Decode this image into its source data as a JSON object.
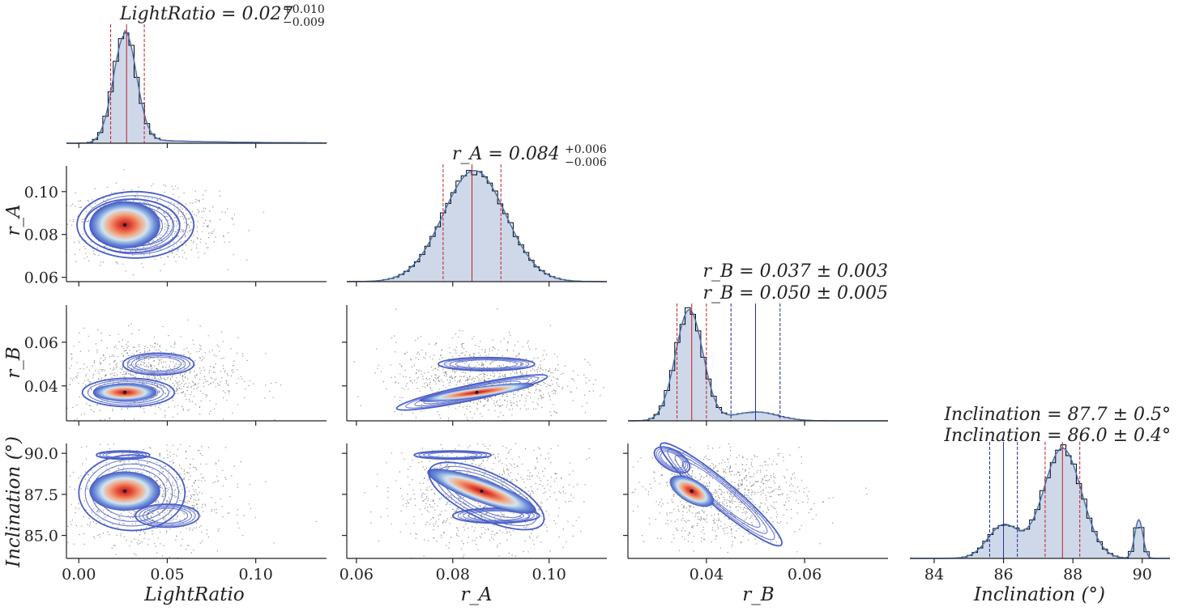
{
  "figure": {
    "type": "corner-plot"
  },
  "parameters": [
    {
      "key": "light_ratio",
      "label": "LightRatio",
      "range": [
        -0.007,
        0.14
      ],
      "ticks": [
        0.0,
        0.05,
        0.1
      ],
      "tick_labels": [
        "0.00",
        "0.05",
        "0.10"
      ]
    },
    {
      "key": "r_a",
      "label": "r_A",
      "range": [
        0.058,
        0.112
      ],
      "ticks": [
        0.06,
        0.08,
        0.1
      ],
      "tick_labels": [
        "0.06",
        "0.08",
        "0.10"
      ]
    },
    {
      "key": "r_b",
      "label": "r_B",
      "range": [
        0.024,
        0.077
      ],
      "ticks": [
        0.04,
        0.06
      ],
      "tick_labels": [
        "0.04",
        "0.06"
      ]
    },
    {
      "key": "inclination",
      "label": "Inclination (°)",
      "range": [
        83.3,
        90.8
      ],
      "ticks": [
        84,
        86,
        88,
        90
      ],
      "tick_labels": [
        "84",
        "86",
        "88",
        "90"
      ],
      "row_ticks": [
        85.0,
        87.5,
        90.0
      ],
      "row_tick_labels": [
        "85.0",
        "87.5",
        "90.0"
      ],
      "row_range": [
        83.6,
        90.6
      ]
    }
  ],
  "titles": {
    "light_ratio": {
      "lines": [
        "LightRatio = 0.027"
      ],
      "sup": "+0.010",
      "sub": "−0.009"
    },
    "r_a": {
      "lines": [
        "r_A = 0.084"
      ],
      "sup": "+0.006",
      "sub": "−0.006"
    },
    "r_b": {
      "lines": [
        "r_B = 0.037 ± 0.003",
        "r_B = 0.050 ± 0.005"
      ]
    },
    "inclination": {
      "lines": [
        "Inclination = 87.7 ± 0.5°",
        "Inclination = 86.0 ± 0.4°"
      ]
    }
  },
  "chart_data": {
    "type": "corner",
    "colors": {
      "hist_fill": "#cfd8e8",
      "kde_line": "#4c72b0",
      "hist_step": "#000000",
      "median_red": "#c0202a",
      "median_blue": "#1f2b9e",
      "contour": "#4a5fc8",
      "core": "#d63027"
    },
    "marginals": [
      {
        "param": "light_ratio",
        "modes": [
          {
            "mu": 0.026,
            "sigma": 0.0065,
            "w": 1.0,
            "tail": 0.045
          }
        ],
        "markers": [
          {
            "x": 0.018,
            "color": "red",
            "style": "dashed"
          },
          {
            "x": 0.027,
            "color": "red",
            "style": "solid"
          },
          {
            "x": 0.037,
            "color": "red",
            "style": "dashed"
          }
        ]
      },
      {
        "param": "r_a",
        "modes": [
          {
            "mu": 0.0845,
            "sigma": 0.0065,
            "w": 1.0
          }
        ],
        "markers": [
          {
            "x": 0.078,
            "color": "red",
            "style": "dashed"
          },
          {
            "x": 0.084,
            "color": "red",
            "style": "solid"
          },
          {
            "x": 0.09,
            "color": "red",
            "style": "dashed"
          }
        ]
      },
      {
        "param": "r_b",
        "modes": [
          {
            "mu": 0.0365,
            "sigma": 0.0028,
            "w": 1.0
          },
          {
            "mu": 0.05,
            "sigma": 0.0045,
            "w": 0.08
          }
        ],
        "markers": [
          {
            "x": 0.034,
            "color": "red",
            "style": "dashed"
          },
          {
            "x": 0.037,
            "color": "red",
            "style": "solid"
          },
          {
            "x": 0.04,
            "color": "red",
            "style": "dashed"
          },
          {
            "x": 0.045,
            "color": "blue",
            "style": "dashed"
          },
          {
            "x": 0.05,
            "color": "blue",
            "style": "solid"
          },
          {
            "x": 0.055,
            "color": "blue",
            "style": "dashed"
          }
        ]
      },
      {
        "param": "inclination",
        "modes": [
          {
            "mu": 87.7,
            "sigma": 0.55,
            "w": 1.0
          },
          {
            "mu": 86.0,
            "sigma": 0.45,
            "w": 0.3
          },
          {
            "mu": 89.9,
            "sigma": 0.12,
            "w": 0.35
          }
        ],
        "markers": [
          {
            "x": 85.6,
            "color": "blue",
            "style": "dashed"
          },
          {
            "x": 86.0,
            "color": "blue",
            "style": "solid"
          },
          {
            "x": 86.4,
            "color": "blue",
            "style": "dashed"
          },
          {
            "x": 87.2,
            "color": "red",
            "style": "dashed"
          },
          {
            "x": 87.7,
            "color": "red",
            "style": "solid"
          },
          {
            "x": 88.2,
            "color": "red",
            "style": "dashed"
          }
        ]
      }
    ],
    "pairs": [
      {
        "x": "light_ratio",
        "y": "r_a",
        "cores": [
          {
            "cx": 0.026,
            "cy": 0.0845,
            "sx": 0.01,
            "sy": 0.0055,
            "rot": 0
          }
        ],
        "contours": [
          {
            "cx": 0.032,
            "cy": 0.0845,
            "rx": 0.033,
            "ry": 0.0155,
            "rot": 0
          },
          {
            "cx": 0.03,
            "cy": 0.084,
            "rx": 0.027,
            "ry": 0.0125,
            "rot": 0
          }
        ],
        "scatter": {
          "cx": 0.035,
          "cy": 0.084,
          "sx": 0.022,
          "sy": 0.008
        }
      },
      {
        "x": "light_ratio",
        "y": "r_b",
        "cores": [
          {
            "cx": 0.026,
            "cy": 0.037,
            "sx": 0.009,
            "sy": 0.002,
            "rot": 0
          }
        ],
        "contours": [
          {
            "cx": 0.028,
            "cy": 0.037,
            "rx": 0.026,
            "ry": 0.0065,
            "rot": 0
          },
          {
            "cx": 0.045,
            "cy": 0.05,
            "rx": 0.02,
            "ry": 0.005,
            "rot": 0
          }
        ],
        "scatter": {
          "cx": 0.04,
          "cy": 0.044,
          "sx": 0.025,
          "sy": 0.009
        }
      },
      {
        "x": "r_a",
        "y": "r_b",
        "cores": [
          {
            "cx": 0.085,
            "cy": 0.037,
            "sx": 0.006,
            "sy": 0.0012,
            "rot": 8
          }
        ],
        "contours": [
          {
            "cx": 0.084,
            "cy": 0.037,
            "rx": 0.016,
            "ry": 0.0035,
            "rot": 12
          },
          {
            "cx": 0.087,
            "cy": 0.05,
            "rx": 0.01,
            "ry": 0.003,
            "rot": 0
          }
        ],
        "scatter": {
          "cx": 0.086,
          "cy": 0.043,
          "sx": 0.009,
          "sy": 0.009
        }
      },
      {
        "x": "light_ratio",
        "y": "inclination",
        "cores": [
          {
            "cx": 0.026,
            "cy": 87.7,
            "sx": 0.01,
            "sy": 0.6,
            "rot": 0
          }
        ],
        "contours": [
          {
            "cx": 0.03,
            "cy": 87.6,
            "rx": 0.03,
            "ry": 2.3,
            "rot": 0
          },
          {
            "cx": 0.05,
            "cy": 86.2,
            "rx": 0.018,
            "ry": 0.7,
            "rot": 0
          },
          {
            "cx": 0.025,
            "cy": 89.9,
            "rx": 0.015,
            "ry": 0.25,
            "rot": 0
          }
        ],
        "scatter": {
          "cx": 0.04,
          "cy": 87.3,
          "sx": 0.022,
          "sy": 1.6
        }
      },
      {
        "x": "r_a",
        "y": "inclination",
        "cores": [
          {
            "cx": 0.086,
            "cy": 87.7,
            "sx": 0.006,
            "sy": 0.35,
            "rot": -20
          }
        ],
        "contours": [
          {
            "cx": 0.087,
            "cy": 87.4,
            "rx": 0.013,
            "ry": 1.4,
            "rot": -25
          },
          {
            "cx": 0.089,
            "cy": 86.2,
            "rx": 0.009,
            "ry": 0.45,
            "rot": 0
          },
          {
            "cx": 0.08,
            "cy": 89.9,
            "rx": 0.008,
            "ry": 0.25,
            "rot": 0
          }
        ],
        "scatter": {
          "cx": 0.086,
          "cy": 87.5,
          "sx": 0.009,
          "sy": 1.6
        }
      },
      {
        "x": "r_b",
        "y": "inclination",
        "cores": [
          {
            "cx": 0.037,
            "cy": 87.7,
            "sx": 0.0025,
            "sy": 0.35,
            "rot": -30
          }
        ],
        "contours": [
          {
            "cx": 0.043,
            "cy": 87.5,
            "rx": 0.016,
            "ry": 0.8,
            "rot": -40
          },
          {
            "cx": 0.033,
            "cy": 89.6,
            "rx": 0.004,
            "ry": 0.6,
            "rot": -30
          }
        ],
        "scatter": {
          "cx": 0.044,
          "cy": 87.4,
          "sx": 0.008,
          "sy": 1.4
        }
      }
    ]
  }
}
